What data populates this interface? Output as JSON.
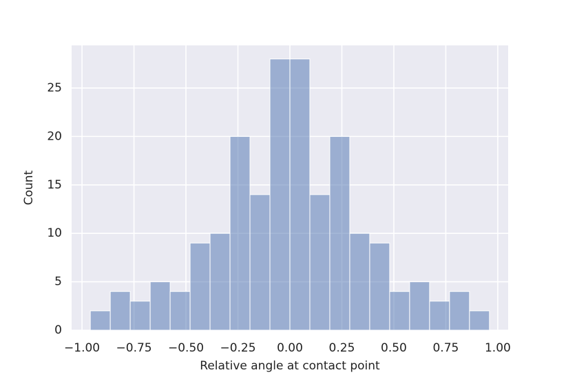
{
  "chart_data": {
    "type": "histogram",
    "xlabel": "Relative angle at contact point",
    "ylabel": "Count",
    "bins": [
      -0.96,
      -0.864,
      -0.768,
      -0.672,
      -0.576,
      -0.48,
      -0.384,
      -0.288,
      -0.192,
      -0.096,
      0,
      0.096,
      0.192,
      0.288,
      0.384,
      0.48,
      0.576,
      0.672,
      0.768,
      0.864,
      0.96
    ],
    "counts": [
      2,
      4,
      3,
      5,
      4,
      9,
      10,
      20,
      14,
      28,
      28,
      14,
      20,
      10,
      9,
      4,
      5,
      3,
      4,
      2
    ],
    "color": "#4c72b0",
    "xlim": [
      -1.05,
      1.05
    ],
    "ylim": [
      0,
      29.4
    ],
    "xticks": [
      {
        "value": -1,
        "label": "−1.00"
      },
      {
        "value": -0.75,
        "label": "−0.75"
      },
      {
        "value": -0.5,
        "label": "−0.50"
      },
      {
        "value": -0.25,
        "label": "−0.25"
      },
      {
        "value": 0,
        "label": "0.00"
      },
      {
        "value": 0.25,
        "label": "0.25"
      },
      {
        "value": 0.5,
        "label": "0.50"
      },
      {
        "value": 0.75,
        "label": "0.75"
      },
      {
        "value": 1,
        "label": "1.00"
      }
    ],
    "yticks": [
      0,
      5,
      10,
      15,
      20,
      25
    ],
    "grid": true
  }
}
